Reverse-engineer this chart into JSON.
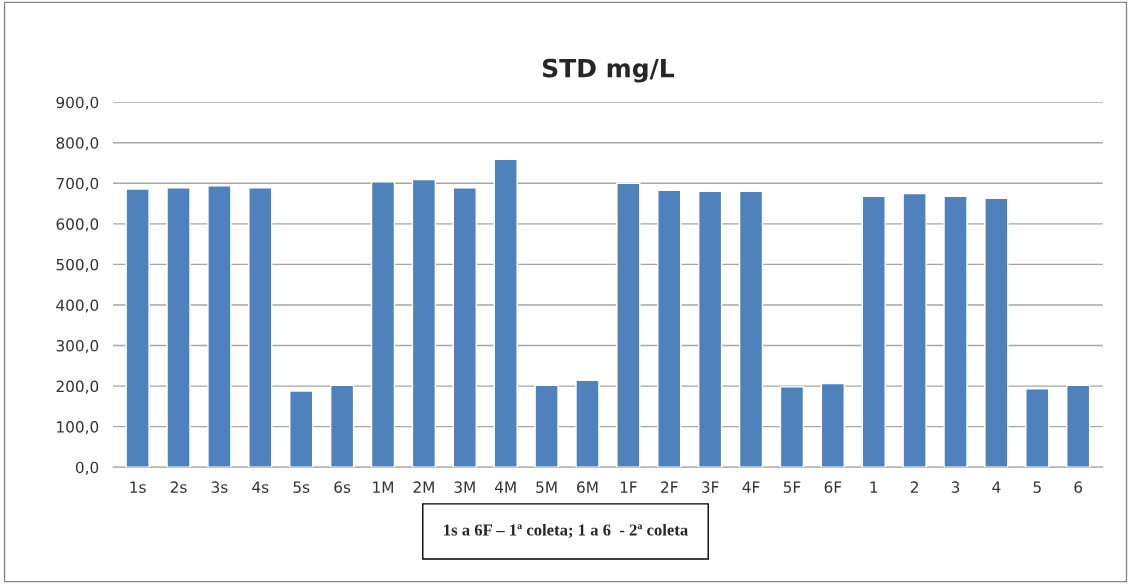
{
  "chart_data": {
    "type": "bar",
    "title": "STD mg/L",
    "categories": [
      "1s",
      "2s",
      "3s",
      "4s",
      "5s",
      "6s",
      "1M",
      "2M",
      "3M",
      "4M",
      "5M",
      "6M",
      "1F",
      "2F",
      "3F",
      "4F",
      "5F",
      "6F",
      "1",
      "2",
      "3",
      "4",
      "5",
      "6"
    ],
    "values": [
      686,
      689,
      694,
      689,
      188,
      202,
      704,
      709,
      689,
      759,
      202,
      214,
      700,
      683,
      680,
      680,
      198,
      206,
      668,
      675,
      668,
      663,
      193,
      202
    ],
    "color": "#4f81bd",
    "ylim": [
      0,
      900
    ],
    "yticks": [
      {
        "value": 0,
        "label": "0,0"
      },
      {
        "value": 100,
        "label": "100,0"
      },
      {
        "value": 200,
        "label": "200,0"
      },
      {
        "value": 300,
        "label": "300,0"
      },
      {
        "value": 400,
        "label": "400,0"
      },
      {
        "value": 500,
        "label": "500,0"
      },
      {
        "value": 600,
        "label": "600,0"
      },
      {
        "value": 700,
        "label": "700,0"
      },
      {
        "value": 800,
        "label": "800,0"
      },
      {
        "value": 900,
        "label": "900,0"
      }
    ],
    "grid": "y",
    "annotations": [
      "1s a 6F – 1ª coleta; 1 a 6  - 2ª coleta"
    ]
  }
}
